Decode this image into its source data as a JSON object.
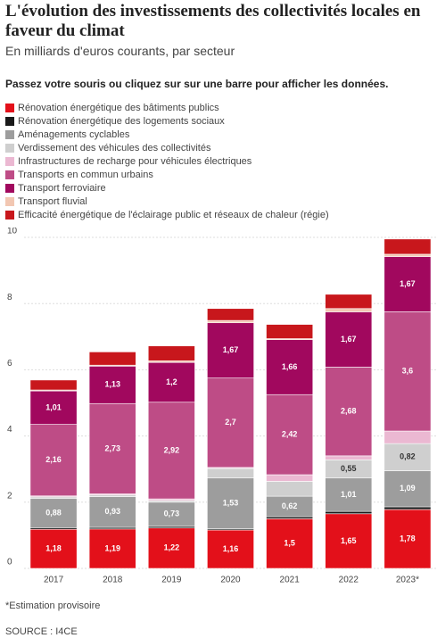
{
  "chart_data": {
    "type": "stacked-bar",
    "title": "L'évolution des investissements des collectivités locales en faveur du climat",
    "subtitle": "En milliards d'euros courants, par secteur",
    "instruction": "Passez votre souris ou cliquez sur sur une barre pour afficher les données.",
    "note": "*Estimation provisoire",
    "source": "SOURCE : I4CE",
    "categories": [
      "2017",
      "2018",
      "2019",
      "2020",
      "2021",
      "2022",
      "2023*"
    ],
    "ylim": [
      0,
      10
    ],
    "yticks": [
      0,
      2,
      4,
      6,
      8,
      10
    ],
    "grid": true,
    "series": [
      {
        "name": "Rénovation énergétique des bâtiments publics",
        "color": "#e3101a",
        "values": [
          1.18,
          1.19,
          1.22,
          1.16,
          1.5,
          1.65,
          1.78
        ],
        "value_labels": [
          "1,18",
          "1,19",
          "1,22",
          "1,16",
          "1,5",
          "1,65",
          "1,78"
        ]
      },
      {
        "name": "Rénovation énergétique des logements sociaux",
        "color": "#1a1a1a",
        "values": [
          0.05,
          0.05,
          0.05,
          0.04,
          0.06,
          0.07,
          0.08
        ]
      },
      {
        "name": "Aménagements cyclables",
        "color": "#9d9d9d",
        "values": [
          0.88,
          0.93,
          0.73,
          1.53,
          0.62,
          1.01,
          1.09
        ],
        "value_labels": [
          "0,88",
          "0,93",
          "0,73",
          "1,53",
          "0,62",
          "1,01",
          "1,09"
        ]
      },
      {
        "name": "Verdissement des véhicules des collectivités",
        "color": "#cfcfcf",
        "values": [
          0.05,
          0.05,
          0.05,
          0.29,
          0.45,
          0.55,
          0.82
        ],
        "value_labels": [
          null,
          null,
          null,
          null,
          null,
          "0,55",
          "0,82"
        ]
      },
      {
        "name": "Infrastructures de recharge pour véhicules électriques",
        "color": "#ebb8d2",
        "values": [
          0.03,
          0.03,
          0.05,
          0.03,
          0.2,
          0.12,
          0.38
        ]
      },
      {
        "name": "Transports en commun urbains",
        "color": "#be4c86",
        "values": [
          2.16,
          2.73,
          2.92,
          2.7,
          2.42,
          2.68,
          3.6
        ],
        "value_labels": [
          "2,16",
          "2,73",
          "2,92",
          "2,7",
          "2,42",
          "2,68",
          "3,6"
        ]
      },
      {
        "name": "Transport ferroviaire",
        "color": "#a1085e",
        "values": [
          1.01,
          1.13,
          1.2,
          1.67,
          1.66,
          1.67,
          1.67
        ],
        "value_labels": [
          "1,01",
          "1,13",
          "1,2",
          "1,67",
          "1,66",
          "1,67",
          "1,67"
        ]
      },
      {
        "name": "Transport fluvial",
        "color": "#f2c7b2",
        "values": [
          0.03,
          0.03,
          0.05,
          0.07,
          0.03,
          0.1,
          0.07
        ]
      },
      {
        "name": "Efficacité énergétique de l'éclairage public et réseaux de chaleur (régie)",
        "color": "#c8171c",
        "values": [
          0.3,
          0.4,
          0.45,
          0.36,
          0.43,
          0.43,
          0.46
        ]
      }
    ]
  }
}
